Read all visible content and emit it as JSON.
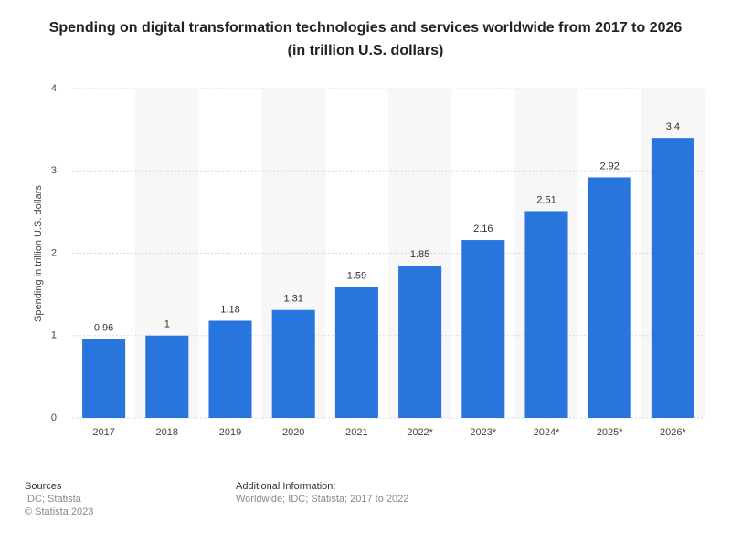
{
  "chart_data": {
    "type": "bar",
    "title": "Spending on digital transformation technologies and services worldwide from 2017 to 2026 (in trillion U.S. dollars)",
    "y_label": "Spending in trillion U.S. dollars",
    "categories": [
      "2017",
      "2018",
      "2019",
      "2020",
      "2021",
      "2022*",
      "2023*",
      "2024*",
      "2025*",
      "2026*"
    ],
    "values": [
      0.96,
      1,
      1.18,
      1.31,
      1.59,
      1.85,
      2.16,
      2.51,
      2.92,
      3.4
    ],
    "color": "#2876dd",
    "ylim": [
      0,
      4
    ],
    "yticks": [
      0,
      1,
      2,
      3,
      4
    ],
    "grid": true
  },
  "footer": {
    "sources_title": "Sources",
    "sources": "IDC; Statista",
    "copyright": "© Statista 2023",
    "info_title": "Additional Information:",
    "info": "Worldwide; IDC; Statista; 2017 to 2022"
  }
}
